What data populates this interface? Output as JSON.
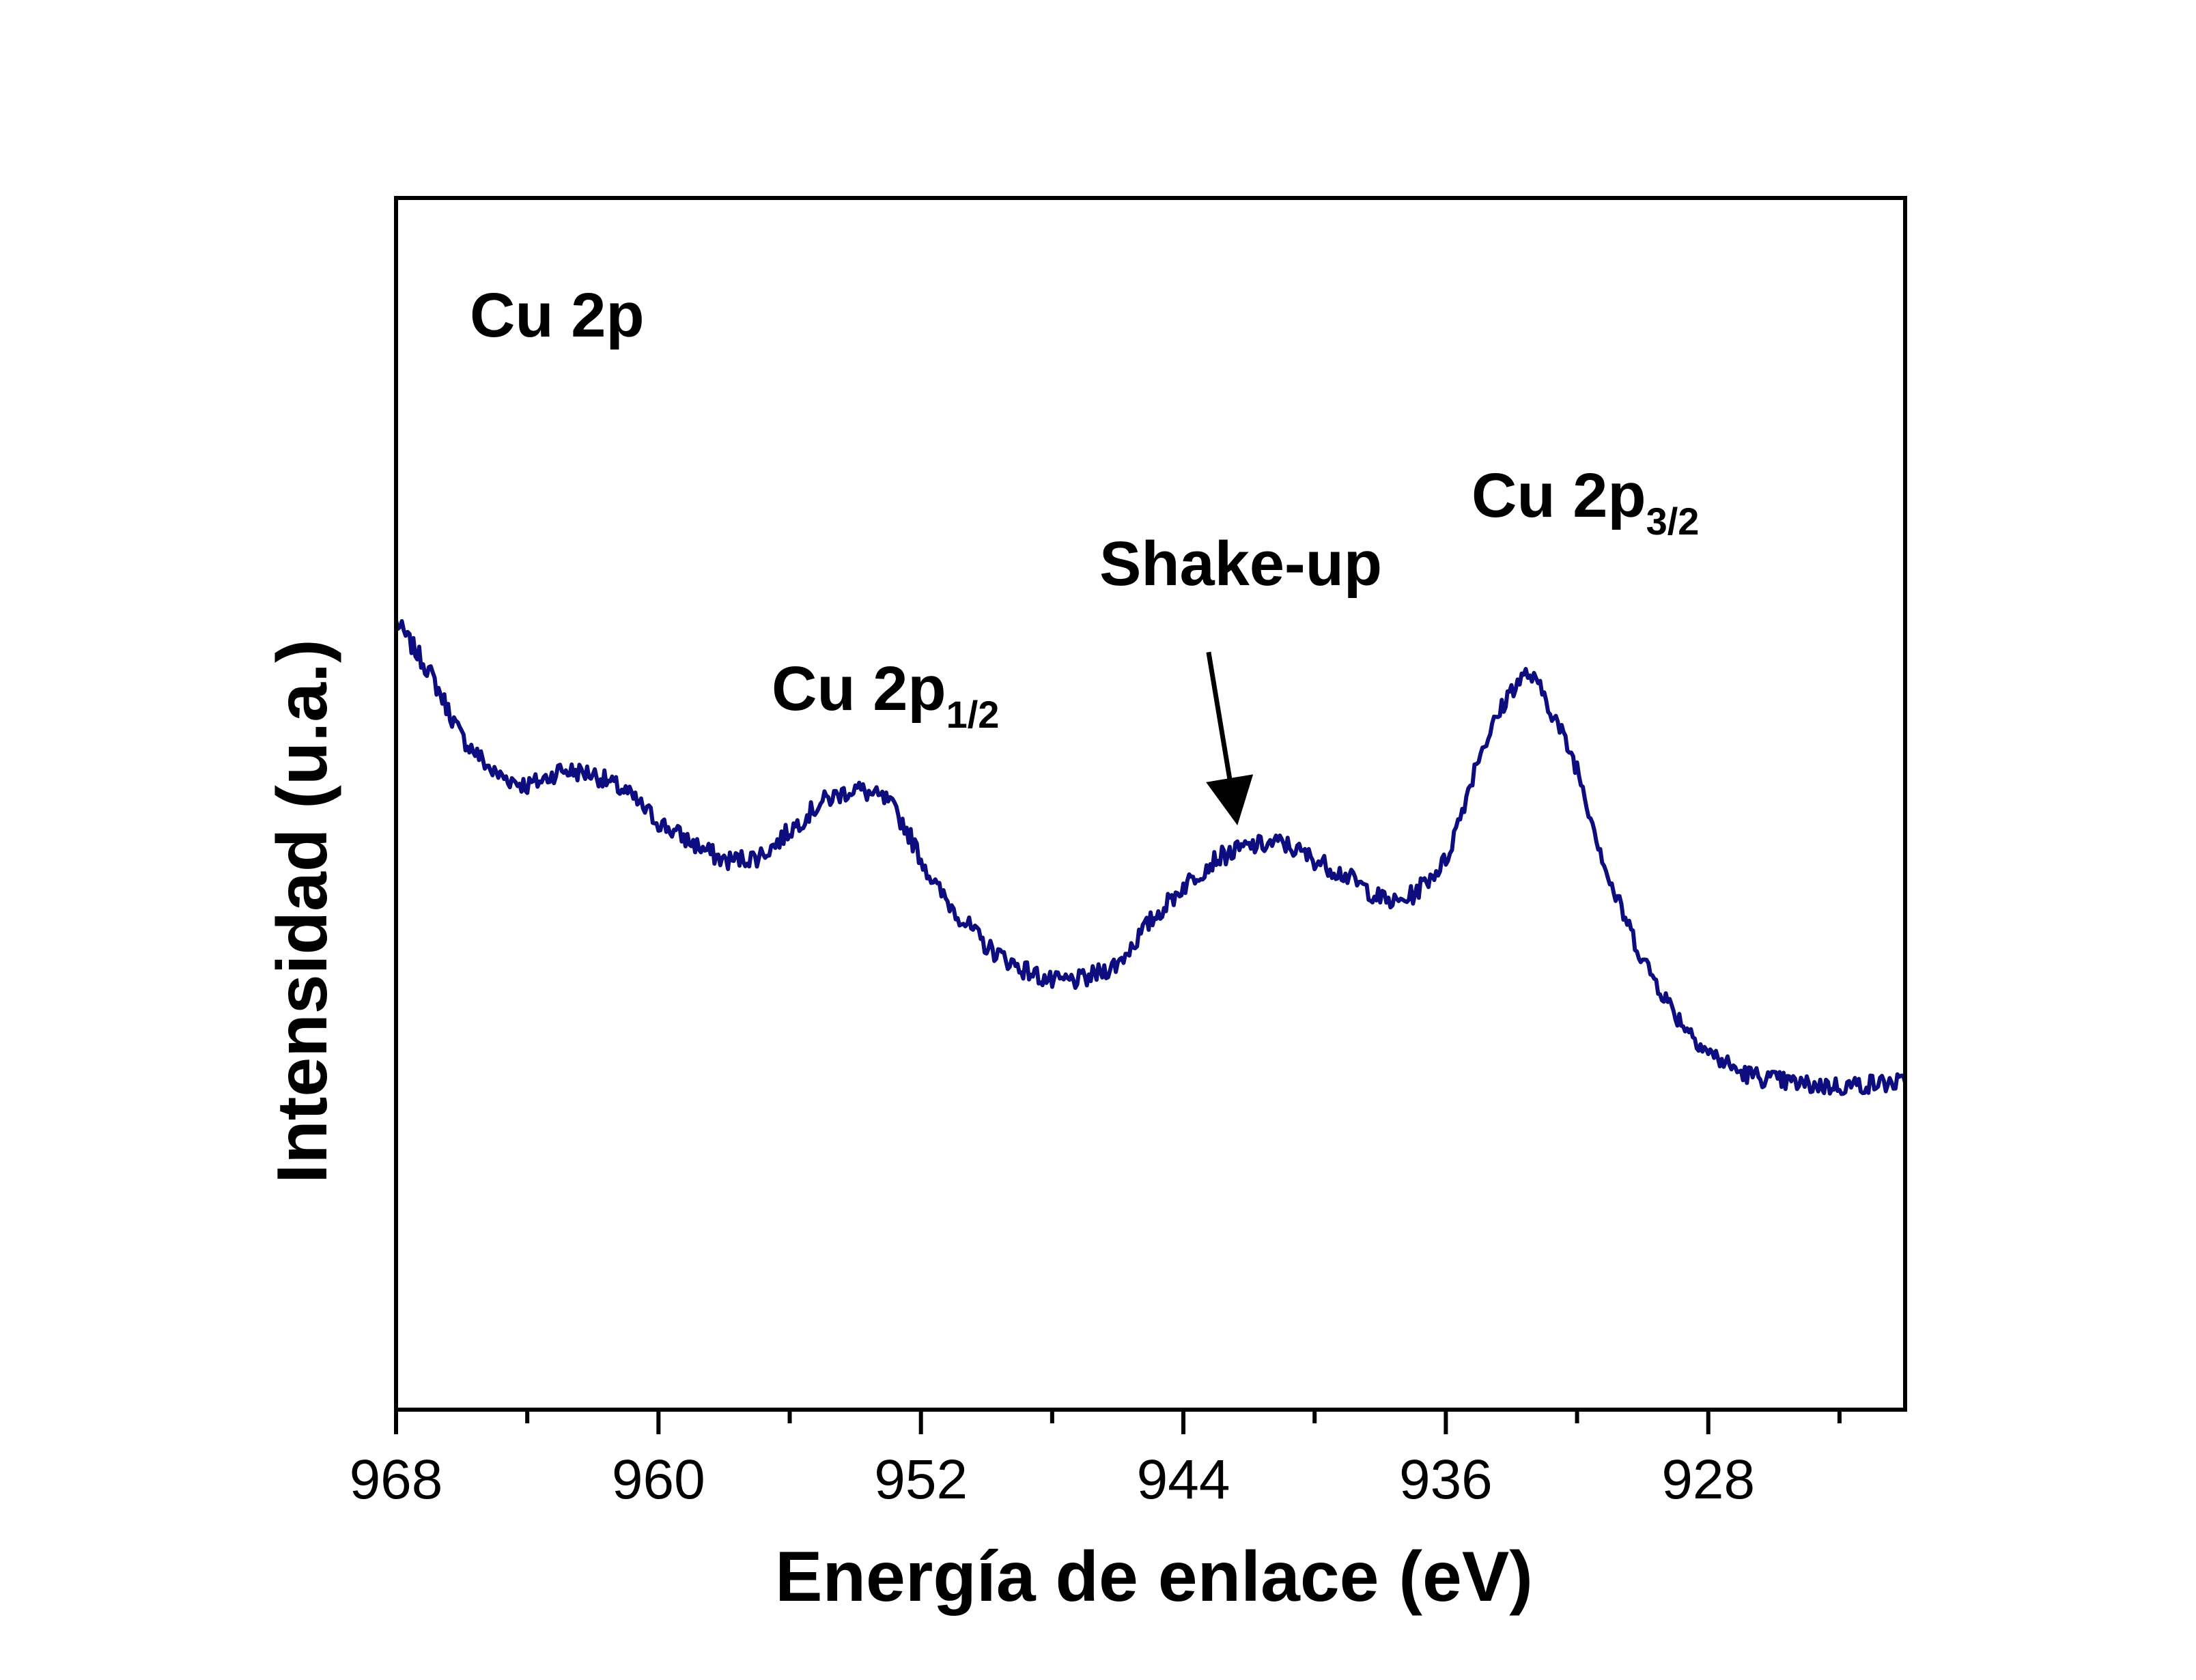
{
  "chart_data": {
    "type": "line",
    "title": "",
    "xlabel": "Energía de enlace (eV)",
    "ylabel": "Intensidad (u.a.)",
    "xlim": [
      968,
      922
    ],
    "x_reversed": true,
    "ylim": [
      0,
      100
    ],
    "y_ticks_shown": false,
    "grid": false,
    "x_ticks": [
      968,
      960,
      952,
      944,
      936,
      928
    ],
    "x_tick_labels": [
      "968",
      "960",
      "952",
      "944",
      "936",
      "928"
    ],
    "line_color": "#0d0d80",
    "series": [
      {
        "name": "",
        "x": [
          968,
          967,
          966,
          965,
          964,
          963.5,
          963,
          962,
          961,
          960,
          959,
          958,
          957,
          956.5,
          956,
          955,
          954,
          953,
          952.5,
          952,
          951.5,
          951,
          950,
          949,
          948,
          947,
          946,
          945,
          944,
          943,
          942,
          941,
          940,
          939,
          938,
          937.5,
          937,
          936,
          935.5,
          935,
          934,
          933.5,
          933,
          932,
          931,
          930,
          929,
          928,
          927,
          926,
          925,
          924,
          923,
          922
        ],
        "y": [
          65,
          61,
          55.5,
          52.5,
          51.5,
          52,
          52.8,
          52.5,
          51,
          48.5,
          46.8,
          45.3,
          45.6,
          46.5,
          47.8,
          50.2,
          51.3,
          50.2,
          48.2,
          45.5,
          43,
          41.3,
          38.2,
          36.5,
          35.3,
          35.5,
          36.8,
          40.3,
          43.2,
          45.5,
          46.5,
          46.8,
          45.4,
          44,
          42.2,
          41.8,
          42.5,
          45.3,
          49.5,
          54,
          59.5,
          60.8,
          59,
          53,
          43.5,
          37.2,
          32.6,
          29.5,
          27.8,
          27.2,
          26.8,
          26.7,
          26.9,
          27
        ]
      }
    ],
    "annotations": [
      {
        "text": "Cu 2p",
        "sub": ""
      },
      {
        "text": "Cu 2p",
        "sub": "1/2"
      },
      {
        "text": "Shake-up",
        "sub": "",
        "arrow_to": {
          "x": 942.4,
          "y": 49
        }
      },
      {
        "text": "Cu 2p",
        "sub": "3/2"
      }
    ]
  }
}
